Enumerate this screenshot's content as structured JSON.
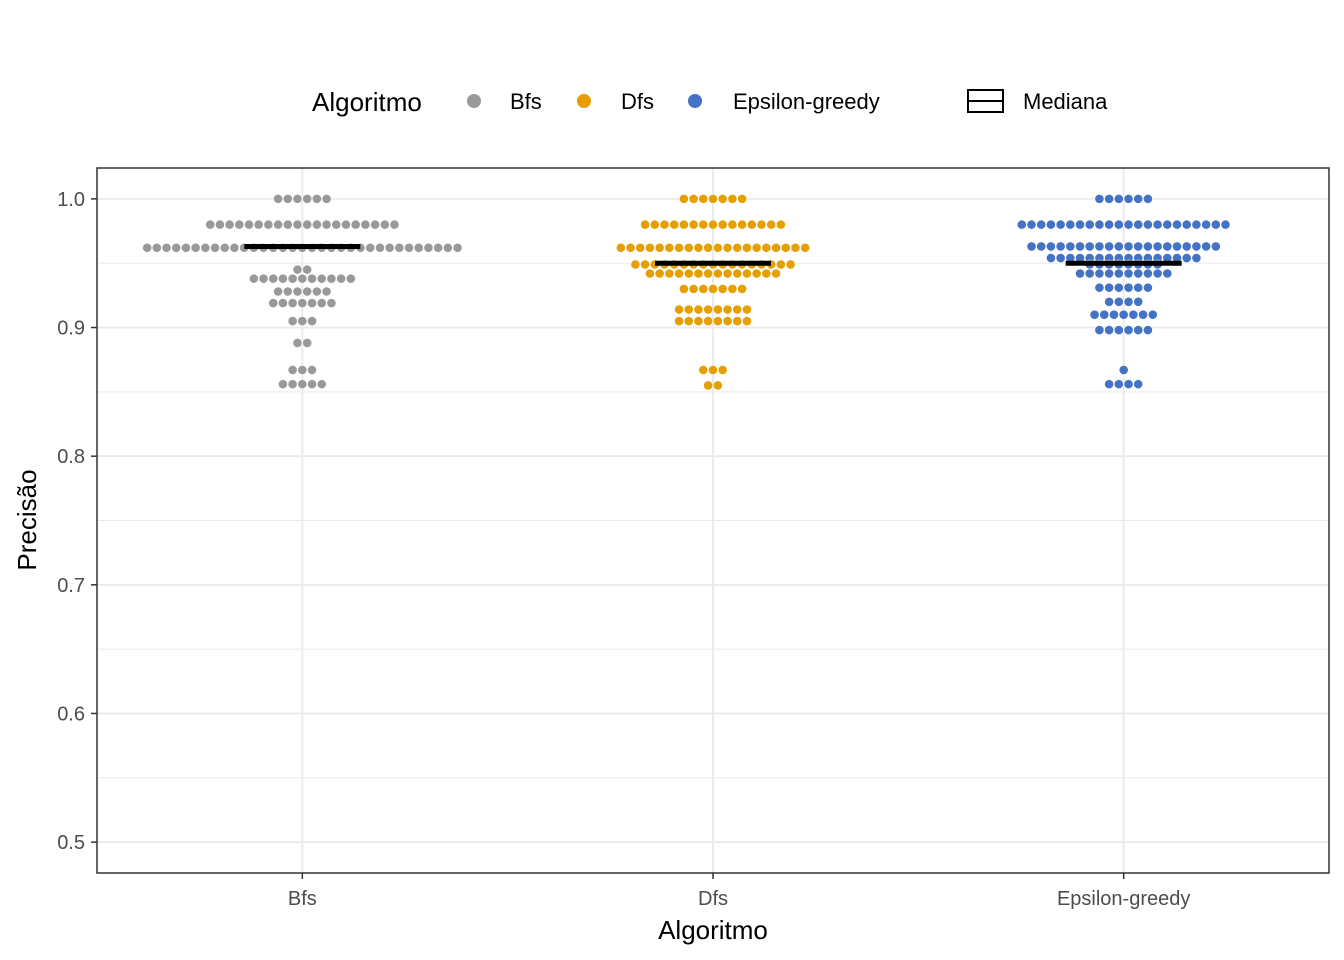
{
  "chart_data": {
    "type": "scatter",
    "subtype": "dotplot",
    "xlabel": "Algoritmo",
    "ylabel": "Precisão",
    "ylim": [
      0.476,
      1.024
    ],
    "yticks": [
      "0.5",
      "0.6",
      "0.7",
      "0.8",
      "0.9",
      "1.0"
    ],
    "categories": [
      "Bfs",
      "Dfs",
      "Epsilon-greedy"
    ],
    "grid": true,
    "legend": {
      "position": "top",
      "title": "Algoritmo",
      "median_label": "Mediana"
    },
    "series": [
      {
        "name": "Bfs",
        "color": "#999999",
        "median": 0.963,
        "bins": [
          {
            "y": 1.0,
            "count": 6
          },
          {
            "y": 0.98,
            "count": 20
          },
          {
            "y": 0.962,
            "count": 33
          },
          {
            "y": 0.945,
            "count": 2
          },
          {
            "y": 0.938,
            "count": 11
          },
          {
            "y": 0.928,
            "count": 6
          },
          {
            "y": 0.919,
            "count": 7
          },
          {
            "y": 0.905,
            "count": 3
          },
          {
            "y": 0.888,
            "count": 2
          },
          {
            "y": 0.867,
            "count": 3
          },
          {
            "y": 0.856,
            "count": 5
          }
        ]
      },
      {
        "name": "Dfs",
        "color": "#E69F00",
        "median": 0.95,
        "bins": [
          {
            "y": 1.0,
            "count": 7
          },
          {
            "y": 0.98,
            "count": 15
          },
          {
            "y": 0.962,
            "count": 20
          },
          {
            "y": 0.949,
            "count": 17
          },
          {
            "y": 0.942,
            "count": 14
          },
          {
            "y": 0.93,
            "count": 7
          },
          {
            "y": 0.914,
            "count": 8
          },
          {
            "y": 0.905,
            "count": 8
          },
          {
            "y": 0.867,
            "count": 3
          },
          {
            "y": 0.855,
            "count": 2
          }
        ]
      },
      {
        "name": "Epsilon-greedy",
        "color": "#4472C4",
        "median": 0.95,
        "bins": [
          {
            "y": 1.0,
            "count": 6
          },
          {
            "y": 0.98,
            "count": 22
          },
          {
            "y": 0.963,
            "count": 20
          },
          {
            "y": 0.954,
            "count": 16
          },
          {
            "y": 0.949,
            "count": 8
          },
          {
            "y": 0.942,
            "count": 10
          },
          {
            "y": 0.931,
            "count": 6
          },
          {
            "y": 0.92,
            "count": 4
          },
          {
            "y": 0.91,
            "count": 7
          },
          {
            "y": 0.898,
            "count": 6
          },
          {
            "y": 0.867,
            "count": 1
          },
          {
            "y": 0.856,
            "count": 4
          }
        ]
      }
    ]
  }
}
